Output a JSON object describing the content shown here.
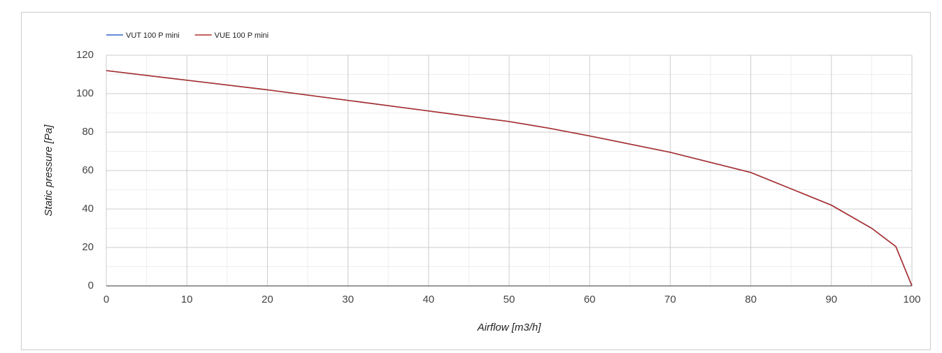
{
  "chart_data": {
    "type": "line",
    "x_label": "Airflow [m3/h]",
    "y_label": "Static pressure [Pa]",
    "x": [
      0,
      10,
      20,
      30,
      40,
      50,
      55,
      60,
      70,
      80,
      90,
      95,
      98,
      100
    ],
    "series": [
      {
        "name": "VUT 100 P mini",
        "color": "#3366cc",
        "values": [
          112,
          107,
          102,
          96.5,
          91,
          85.5,
          82,
          78,
          69.5,
          59,
          42,
          30,
          20.5,
          0
        ]
      },
      {
        "name": "VUE 100 P mini",
        "color": "#b0302a",
        "values": [
          112,
          107,
          102,
          96.5,
          91,
          85.5,
          82,
          78,
          69.5,
          59,
          42,
          30,
          20.5,
          0
        ]
      }
    ],
    "xlim": [
      0,
      100
    ],
    "xticks": [
      0,
      10,
      20,
      30,
      40,
      50,
      60,
      70,
      80,
      90,
      100
    ],
    "x_minor_ticks": [
      5,
      15,
      25,
      35,
      45,
      55,
      65,
      75,
      85,
      95
    ],
    "ylim": [
      0,
      120
    ],
    "yticks": [
      0,
      20,
      40,
      60,
      80,
      100,
      120
    ],
    "y_minor_ticks": [
      10,
      30,
      50,
      70,
      90,
      110
    ],
    "grid": true,
    "legend": "top-left"
  }
}
